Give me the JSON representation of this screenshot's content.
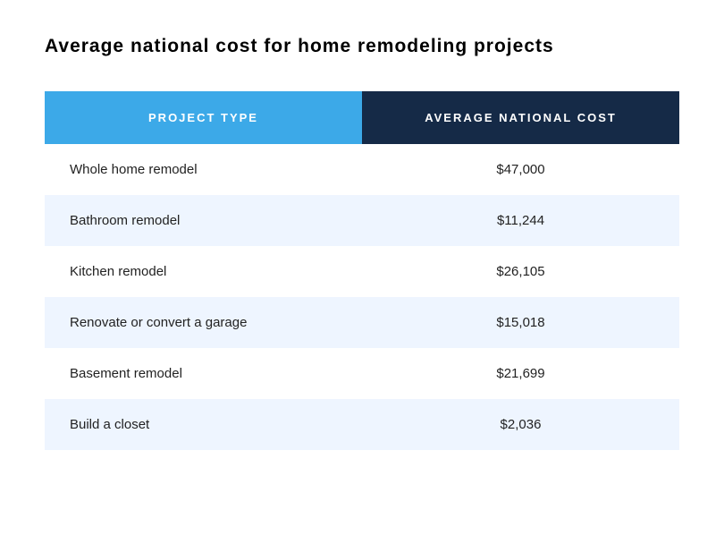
{
  "title": "Average national cost for home remodeling projects",
  "table": {
    "type": "table",
    "columns": [
      {
        "label": "PROJECT TYPE",
        "header_bg": "#3ca9e8",
        "align": "left"
      },
      {
        "label": "AVERAGE NATIONAL COST",
        "header_bg": "#152a47",
        "align": "center"
      }
    ],
    "header_text_color": "#ffffff",
    "header_fontsize": 13,
    "header_letter_spacing": 2,
    "row_colors": {
      "even": "#ffffff",
      "odd": "#eef5ff"
    },
    "body_fontsize": 15,
    "body_text_color": "#222222",
    "rows": [
      {
        "project": "Whole home remodel",
        "cost": "$47,000"
      },
      {
        "project": "Bathroom remodel",
        "cost": "$11,244"
      },
      {
        "project": "Kitchen remodel",
        "cost": "$26,105"
      },
      {
        "project": "Renovate or convert a garage",
        "cost": "$15,018"
      },
      {
        "project": "Basement remodel",
        "cost": "$21,699"
      },
      {
        "project": "Build a closet",
        "cost": "$2,036"
      }
    ]
  },
  "background_color": "#ffffff",
  "title_fontsize": 21,
  "title_color": "#000000"
}
